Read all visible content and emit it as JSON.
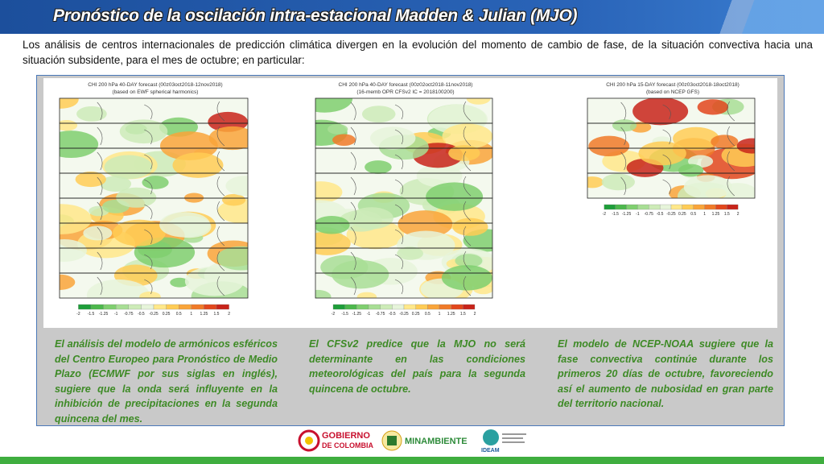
{
  "header": {
    "title": "Pronóstico de la oscilación intra-estacional Madden & Julian (MJO)"
  },
  "intro": "Los análisis de centros internacionales de predicción climática divergen en la evolución del momento de cambio de fase, de la situación convectiva hacia una situación subsidente, para el mes de octubre; en particular:",
  "maps": [
    {
      "title": "CHI 200 hPa 40-DAY forecast (00z03oct2018-12nov2018)",
      "subtitle": "(based on EWF spherical harmonics)",
      "colorbar": [
        "-2",
        "-1.5",
        "-1.25",
        "-1",
        "-0.75",
        "-0.5",
        "-0.25",
        "0.25",
        "0.5",
        "1",
        "1.25",
        "1.5",
        "2"
      ]
    },
    {
      "title": "CHI 200 hPa 40-DAY forecast (00z02oct2018-11nov2018)",
      "subtitle": "(16-memb OPR CFSv2 IC = 2018100200)",
      "colorbar": [
        "-2",
        "-1.5",
        "-1.25",
        "-1",
        "-0.75",
        "-0.5",
        "-0.25",
        "0.25",
        "0.5",
        "1",
        "1.25",
        "1.5",
        "2"
      ]
    },
    {
      "title": "CHI 200 hPa 15-DAY forecast (00z03oct2018-18oct2018)",
      "subtitle": "(based on NCEP GFS)",
      "colorbar": [
        "-2",
        "-1.5",
        "-1.25",
        "-1",
        "-0.75",
        "-0.5",
        "-0.25",
        "0.25",
        "0.5",
        "1",
        "1.25",
        "1.5",
        "2"
      ]
    }
  ],
  "captions": [
    "El análisis del modelo de armónicos esféricos del Centro Europeo para Pronóstico de Medio Plazo (ECMWF por sus siglas en inglés), sugiere que la onda será influyente en la inhibición de precipitaciones en la segunda quincena del mes.",
    "El CFSv2 predice que la MJO no será determinante en las condiciones meteorológicas del país para la segunda quincena de octubre.",
    "El modelo de NCEP-NOAA sugiere que la fase convectiva continúe durante los primeros 20 días de octubre, favoreciendo así el aumento de nubosidad en gran parte del territorio nacional."
  ],
  "footer": {
    "logo1_line1": "GOBIERNO",
    "logo1_line2": "DE COLOMBIA",
    "logo2": "MINAMBIENTE",
    "logo3": "IDEAM"
  }
}
